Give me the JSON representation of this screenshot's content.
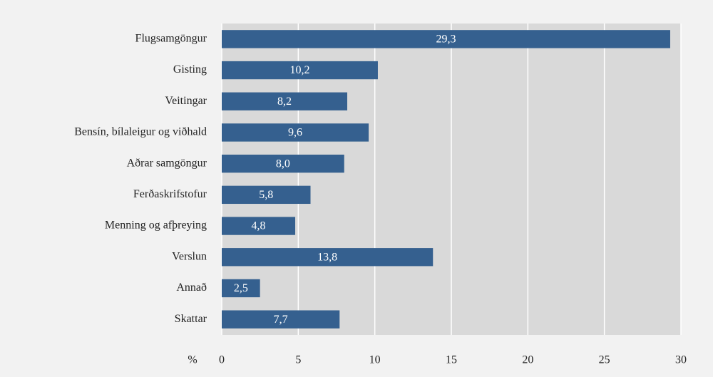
{
  "chart_data": {
    "type": "hbar",
    "x_label": "%",
    "categories": [
      "Flugsamgöngur",
      "Gisting",
      "Veitingar",
      "Bensín, bílaleigur og viðhald",
      "Aðrar samgöngur",
      "Ferðaskrifstofur",
      "Menning og afþreying",
      "Verslun",
      "Annað",
      "Skattar"
    ],
    "values": [
      29.3,
      10.2,
      8.2,
      9.6,
      8.0,
      5.8,
      4.8,
      13.8,
      2.5,
      7.7
    ],
    "value_labels": [
      "29,3",
      "10,2",
      "8,2",
      "9,6",
      "8,0",
      "5,8",
      "4,8",
      "13,8",
      "2,5",
      "7,7"
    ],
    "color": "#35608f",
    "xlim": [
      0,
      30
    ],
    "xticks": [
      0,
      5,
      10,
      15,
      20,
      25,
      30
    ],
    "grid": true
  }
}
